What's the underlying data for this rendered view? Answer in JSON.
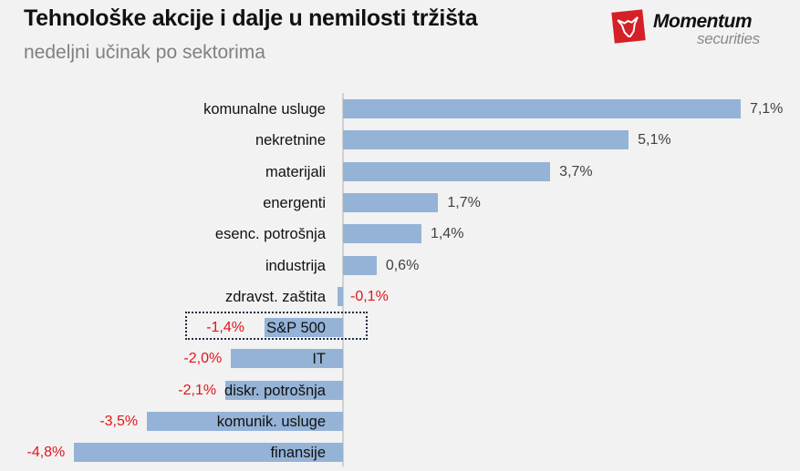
{
  "header": {
    "title": "Tehnološke akcije i dalje u nemilosti tržišta",
    "subtitle": "nedeljni učinak po sektorima"
  },
  "logo": {
    "name": "Momentum",
    "sub": "securities",
    "color": "#d42027"
  },
  "colors": {
    "bar": "#95b3d7",
    "positive_label": "#404040",
    "negative_label": "#e0151b",
    "highlight_border": "#1f2d40"
  },
  "chart_data": {
    "type": "bar",
    "orientation": "horizontal",
    "title": "Tehnološke akcije i dalje u nemilosti tržišta",
    "subtitle": "nedeljni učinak po sektorima",
    "categories": [
      "komunalne usluge",
      "nekretnine",
      "materijali",
      "energenti",
      "esenc. potrošnja",
      "industrija",
      "zdravst. zaštita",
      "S&P 500",
      "IT",
      "diskr. potrošnja",
      "komunik. usluge",
      "finansije"
    ],
    "values": [
      7.1,
      5.1,
      3.7,
      1.7,
      1.4,
      0.6,
      -0.1,
      -1.4,
      -2.0,
      -2.1,
      -3.5,
      -4.8
    ],
    "labels": [
      "7,1%",
      "5,1%",
      "3,7%",
      "1,7%",
      "1,4%",
      "0,6%",
      "-0,1%",
      "-1,4%",
      "-2,0%",
      "-2,1%",
      "-3,5%",
      "-4,8%"
    ],
    "unit": "%",
    "highlighted": "S&P 500",
    "xlabel": "",
    "ylabel": "",
    "grid": false,
    "legend": null
  }
}
